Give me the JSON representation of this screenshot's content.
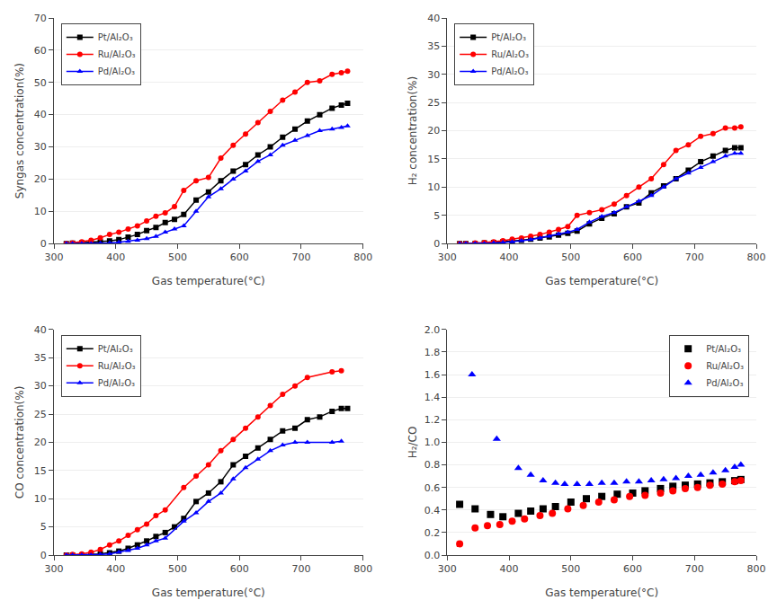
{
  "chart_data": [
    {
      "type": "line",
      "xlabel": "Gas temperature(°C)",
      "ylabel": "Syngas concentration(%)",
      "xlim": [
        300,
        800
      ],
      "xticks": [
        300,
        400,
        500,
        600,
        700,
        800
      ],
      "ylim": [
        0,
        70
      ],
      "yticks": [
        0,
        10,
        20,
        30,
        40,
        50,
        60,
        70
      ],
      "grid": "y",
      "legend": "upper left",
      "series": [
        {
          "name": "Pt/Al₂O₃",
          "color": "#000000",
          "marker": "square",
          "x": [
            320,
            330,
            345,
            360,
            375,
            390,
            405,
            420,
            435,
            450,
            465,
            480,
            495,
            510,
            530,
            550,
            570,
            590,
            610,
            630,
            650,
            670,
            690,
            710,
            730,
            750,
            765,
            775
          ],
          "values": [
            0.0,
            0.1,
            0.2,
            0.3,
            0.5,
            0.8,
            1.2,
            2.0,
            2.8,
            4.0,
            5.0,
            6.5,
            7.5,
            9.0,
            13.5,
            16.0,
            19.5,
            22.5,
            24.5,
            27.5,
            30.0,
            33.0,
            35.5,
            38.0,
            40.0,
            42.0,
            43.0,
            43.5
          ]
        },
        {
          "name": "Ru/Al₂O₃",
          "color": "#ff0000",
          "marker": "circle",
          "x": [
            320,
            330,
            345,
            360,
            375,
            390,
            405,
            420,
            435,
            450,
            465,
            480,
            495,
            510,
            530,
            550,
            570,
            590,
            610,
            630,
            650,
            670,
            690,
            710,
            730,
            750,
            765,
            775
          ],
          "values": [
            0.0,
            0.2,
            0.5,
            1.0,
            1.8,
            2.8,
            3.5,
            4.5,
            5.5,
            7.0,
            8.5,
            9.5,
            11.5,
            16.5,
            19.5,
            20.5,
            26.5,
            30.5,
            34.0,
            37.5,
            41.0,
            44.5,
            47.0,
            50.0,
            50.5,
            52.5,
            53.0,
            53.5
          ]
        },
        {
          "name": "Pd/Al₂O₃",
          "color": "#0000ff",
          "marker": "triangle",
          "x": [
            320,
            330,
            345,
            360,
            375,
            390,
            405,
            420,
            435,
            450,
            465,
            480,
            495,
            510,
            530,
            550,
            570,
            590,
            610,
            630,
            650,
            670,
            690,
            710,
            730,
            750,
            765,
            775
          ],
          "values": [
            0.0,
            0.0,
            0.0,
            0.0,
            0.1,
            0.2,
            0.4,
            0.7,
            1.0,
            1.5,
            2.2,
            3.5,
            4.5,
            5.5,
            10.0,
            14.5,
            17.0,
            20.0,
            22.5,
            25.5,
            27.5,
            30.5,
            32.0,
            33.5,
            35.0,
            35.5,
            36.0,
            36.5
          ]
        }
      ]
    },
    {
      "type": "line",
      "xlabel": "Gas temperature(°C)",
      "ylabel": "H₂ concentration(%)",
      "xlim": [
        300,
        800
      ],
      "xticks": [
        300,
        400,
        500,
        600,
        700,
        800
      ],
      "ylim": [
        0,
        40
      ],
      "yticks": [
        0,
        5,
        10,
        15,
        20,
        25,
        30,
        35,
        40
      ],
      "grid": "y",
      "legend": "upper left",
      "series": [
        {
          "name": "Pt/Al₂O₃",
          "color": "#000000",
          "marker": "square",
          "x": [
            320,
            330,
            345,
            360,
            375,
            390,
            405,
            420,
            435,
            450,
            465,
            480,
            495,
            510,
            530,
            550,
            570,
            590,
            610,
            630,
            650,
            670,
            690,
            710,
            730,
            750,
            765,
            775
          ],
          "values": [
            0.0,
            0.0,
            0.0,
            0.1,
            0.2,
            0.3,
            0.4,
            0.6,
            0.8,
            1.0,
            1.2,
            1.5,
            1.8,
            2.2,
            3.5,
            4.5,
            5.3,
            6.5,
            7.2,
            9.0,
            10.2,
            11.5,
            13.0,
            14.5,
            15.5,
            16.5,
            17.0,
            17.0
          ]
        },
        {
          "name": "Ru/Al₂O₃",
          "color": "#ff0000",
          "marker": "circle",
          "x": [
            320,
            330,
            345,
            360,
            375,
            390,
            405,
            420,
            435,
            450,
            465,
            480,
            495,
            510,
            530,
            550,
            570,
            590,
            610,
            630,
            650,
            670,
            690,
            710,
            730,
            750,
            765,
            775
          ],
          "values": [
            0.0,
            0.0,
            0.1,
            0.2,
            0.3,
            0.5,
            0.8,
            1.0,
            1.3,
            1.6,
            2.0,
            2.5,
            3.0,
            5.0,
            5.5,
            6.0,
            7.0,
            8.5,
            10.0,
            11.5,
            14.0,
            16.5,
            17.5,
            19.0,
            19.5,
            20.5,
            20.5,
            20.7
          ]
        },
        {
          "name": "Pd/Al₂O₃",
          "color": "#0000ff",
          "marker": "triangle",
          "x": [
            320,
            330,
            345,
            360,
            375,
            390,
            405,
            420,
            435,
            450,
            465,
            480,
            495,
            510,
            530,
            550,
            570,
            590,
            610,
            630,
            650,
            670,
            690,
            710,
            730,
            750,
            765,
            775
          ],
          "values": [
            0.0,
            0.0,
            0.0,
            0.0,
            0.1,
            0.2,
            0.3,
            0.5,
            0.7,
            1.0,
            1.3,
            1.7,
            2.0,
            2.5,
            3.8,
            4.8,
            5.5,
            6.5,
            7.5,
            8.5,
            10.0,
            11.5,
            12.5,
            13.5,
            14.5,
            15.5,
            16.0,
            16.0
          ]
        }
      ]
    },
    {
      "type": "line",
      "xlabel": "Gas temperature(°C)",
      "ylabel": "CO concentration(%)",
      "xlim": [
        300,
        800
      ],
      "xticks": [
        300,
        400,
        500,
        600,
        700,
        800
      ],
      "ylim": [
        0,
        40
      ],
      "yticks": [
        0,
        5,
        10,
        15,
        20,
        25,
        30,
        35,
        40
      ],
      "grid": "y",
      "legend": "upper left",
      "series": [
        {
          "name": "Pt/Al₂O₃",
          "color": "#000000",
          "marker": "square",
          "x": [
            320,
            330,
            345,
            360,
            375,
            390,
            405,
            420,
            435,
            450,
            465,
            480,
            495,
            510,
            530,
            550,
            570,
            590,
            610,
            630,
            650,
            670,
            690,
            710,
            730,
            750,
            765,
            775
          ],
          "values": [
            0.0,
            0.0,
            0.0,
            0.1,
            0.2,
            0.4,
            0.7,
            1.2,
            1.8,
            2.5,
            3.3,
            4.0,
            5.0,
            6.5,
            9.5,
            11.0,
            13.0,
            16.0,
            17.5,
            19.0,
            20.5,
            22.0,
            22.5,
            24.0,
            24.5,
            25.5,
            26.0,
            26.0
          ]
        },
        {
          "name": "Ru/Al₂O₃",
          "color": "#ff0000",
          "marker": "circle",
          "x": [
            320,
            330,
            345,
            360,
            375,
            390,
            405,
            420,
            435,
            450,
            465,
            480,
            510,
            530,
            550,
            570,
            590,
            610,
            630,
            650,
            670,
            690,
            710,
            750,
            765
          ],
          "values": [
            0.0,
            0.1,
            0.2,
            0.5,
            1.0,
            1.8,
            2.5,
            3.5,
            4.5,
            5.5,
            7.0,
            8.0,
            12.0,
            14.0,
            16.0,
            18.5,
            20.5,
            22.5,
            24.5,
            26.5,
            28.5,
            30.0,
            31.5,
            32.5,
            32.7
          ]
        },
        {
          "name": "Pd/Al₂O₃",
          "color": "#0000ff",
          "marker": "triangle",
          "x": [
            320,
            330,
            345,
            360,
            375,
            390,
            405,
            420,
            435,
            450,
            465,
            480,
            510,
            530,
            550,
            570,
            590,
            610,
            630,
            650,
            670,
            690,
            710,
            750,
            765
          ],
          "values": [
            0.0,
            0.0,
            0.0,
            0.0,
            0.1,
            0.2,
            0.5,
            0.8,
            1.2,
            1.8,
            2.5,
            3.0,
            6.0,
            7.5,
            9.5,
            11.0,
            13.5,
            15.5,
            17.0,
            18.5,
            19.5,
            20.0,
            20.0,
            20.0,
            20.2
          ]
        }
      ]
    },
    {
      "type": "scatter",
      "xlabel": "Gas temperature(°C)",
      "ylabel": "H₂/CO",
      "xlim": [
        300,
        800
      ],
      "xticks": [
        300,
        400,
        500,
        600,
        700,
        800
      ],
      "ylim": [
        0.0,
        2.0
      ],
      "yticks": [
        {
          "value": 0.0,
          "label": "0.0"
        },
        0.2,
        0.4,
        0.6,
        0.8,
        {
          "value": 1.0,
          "label": "1.0"
        },
        1.2,
        1.4,
        1.6,
        1.8,
        {
          "value": 2.0,
          "label": "2.0"
        }
      ],
      "grid": "y",
      "legend": "upper right",
      "series": [
        {
          "name": "Pt/Al₂O₃",
          "color": "#000000",
          "marker": "square",
          "x": [
            320,
            345,
            370,
            390,
            415,
            435,
            455,
            475,
            500,
            525,
            550,
            575,
            600,
            620,
            645,
            665,
            685,
            705,
            725,
            745,
            765,
            775
          ],
          "values": [
            0.45,
            0.41,
            0.36,
            0.34,
            0.37,
            0.39,
            0.41,
            0.43,
            0.47,
            0.5,
            0.52,
            0.54,
            0.55,
            0.57,
            0.59,
            0.61,
            0.62,
            0.63,
            0.64,
            0.65,
            0.66,
            0.67
          ]
        },
        {
          "name": "Ru/Al₂O₃",
          "color": "#ff0000",
          "marker": "circle",
          "x": [
            320,
            345,
            365,
            385,
            405,
            425,
            450,
            470,
            495,
            520,
            545,
            570,
            595,
            620,
            645,
            665,
            685,
            705,
            725,
            745,
            765,
            775
          ],
          "values": [
            0.1,
            0.24,
            0.26,
            0.27,
            0.3,
            0.32,
            0.35,
            0.37,
            0.41,
            0.44,
            0.47,
            0.49,
            0.52,
            0.53,
            0.55,
            0.57,
            0.59,
            0.6,
            0.62,
            0.63,
            0.65,
            0.66
          ]
        },
        {
          "name": "Pd/Al₂O₃",
          "color": "#0000ff",
          "marker": "triangle",
          "x": [
            340,
            380,
            415,
            435,
            455,
            475,
            490,
            510,
            530,
            550,
            570,
            590,
            610,
            630,
            650,
            670,
            690,
            710,
            730,
            750,
            765,
            775
          ],
          "values": [
            1.6,
            1.03,
            0.77,
            0.71,
            0.66,
            0.64,
            0.63,
            0.63,
            0.63,
            0.64,
            0.64,
            0.65,
            0.65,
            0.66,
            0.67,
            0.68,
            0.7,
            0.71,
            0.73,
            0.75,
            0.78,
            0.8
          ]
        }
      ]
    }
  ]
}
